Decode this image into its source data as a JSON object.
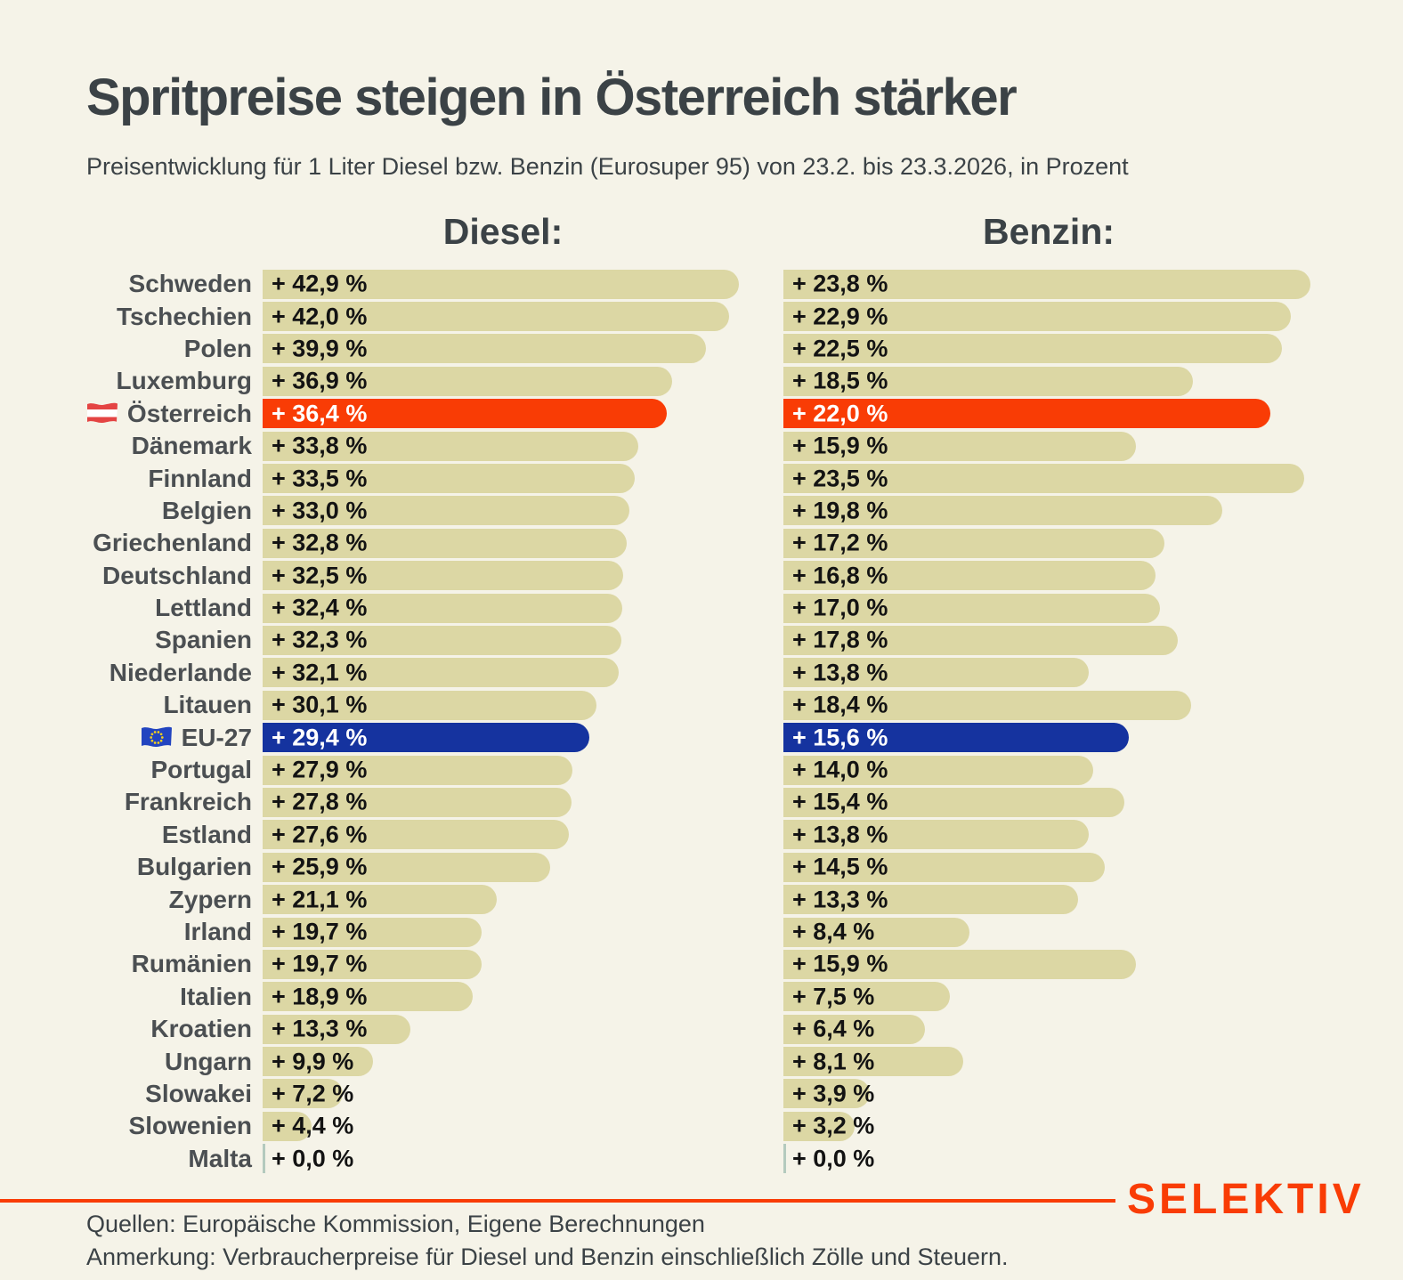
{
  "header": {
    "title": "Spritpreise steigen in Österreich stärker",
    "subtitle": "Preisentwicklung für 1 Liter Diesel bzw. Benzin (Eurosuper 95) von 23.2. bis 23.3.2026, in Prozent"
  },
  "columns": {
    "diesel_header": "Diesel:",
    "benzin_header": "Benzin:"
  },
  "chart_data": {
    "type": "bar",
    "orientation": "horizontal",
    "unit": "%",
    "series": [
      {
        "name": "Diesel",
        "axis_max": 42.9
      },
      {
        "name": "Benzin",
        "axis_max": 23.8
      }
    ],
    "rows": [
      {
        "label": "Schweden",
        "diesel": 42.9,
        "diesel_text": "+ 42,9 %",
        "benzin": 23.8,
        "benzin_text": "+ 23,8 %",
        "flag": null,
        "highlight": null
      },
      {
        "label": "Tschechien",
        "diesel": 42.0,
        "diesel_text": "+ 42,0 %",
        "benzin": 22.9,
        "benzin_text": "+ 22,9 %",
        "flag": null,
        "highlight": null
      },
      {
        "label": "Polen",
        "diesel": 39.9,
        "diesel_text": "+ 39,9 %",
        "benzin": 22.5,
        "benzin_text": "+ 22,5 %",
        "flag": null,
        "highlight": null
      },
      {
        "label": "Luxemburg",
        "diesel": 36.9,
        "diesel_text": "+ 36,9 %",
        "benzin": 18.5,
        "benzin_text": "+ 18,5 %",
        "flag": null,
        "highlight": null
      },
      {
        "label": "Österreich",
        "diesel": 36.4,
        "diesel_text": "+ 36,4 %",
        "benzin": 22.0,
        "benzin_text": "+ 22,0 %",
        "flag": "austria",
        "highlight": "orange"
      },
      {
        "label": "Dänemark",
        "diesel": 33.8,
        "diesel_text": "+ 33,8 %",
        "benzin": 15.9,
        "benzin_text": "+ 15,9 %",
        "flag": null,
        "highlight": null
      },
      {
        "label": "Finnland",
        "diesel": 33.5,
        "diesel_text": "+ 33,5 %",
        "benzin": 23.5,
        "benzin_text": "+ 23,5 %",
        "flag": null,
        "highlight": null
      },
      {
        "label": "Belgien",
        "diesel": 33.0,
        "diesel_text": "+ 33,0 %",
        "benzin": 19.8,
        "benzin_text": "+ 19,8 %",
        "flag": null,
        "highlight": null
      },
      {
        "label": "Griechenland",
        "diesel": 32.8,
        "diesel_text": "+ 32,8 %",
        "benzin": 17.2,
        "benzin_text": "+ 17,2 %",
        "flag": null,
        "highlight": null
      },
      {
        "label": "Deutschland",
        "diesel": 32.5,
        "diesel_text": "+ 32,5 %",
        "benzin": 16.8,
        "benzin_text": "+ 16,8 %",
        "flag": null,
        "highlight": null
      },
      {
        "label": "Lettland",
        "diesel": 32.4,
        "diesel_text": "+ 32,4 %",
        "benzin": 17.0,
        "benzin_text": "+ 17,0 %",
        "flag": null,
        "highlight": null
      },
      {
        "label": "Spanien",
        "diesel": 32.3,
        "diesel_text": "+ 32,3 %",
        "benzin": 17.8,
        "benzin_text": "+ 17,8 %",
        "flag": null,
        "highlight": null
      },
      {
        "label": "Niederlande",
        "diesel": 32.1,
        "diesel_text": "+ 32,1 %",
        "benzin": 13.8,
        "benzin_text": "+ 13,8 %",
        "flag": null,
        "highlight": null
      },
      {
        "label": "Litauen",
        "diesel": 30.1,
        "diesel_text": "+ 30,1 %",
        "benzin": 18.4,
        "benzin_text": "+ 18,4 %",
        "flag": null,
        "highlight": null
      },
      {
        "label": "EU-27",
        "diesel": 29.4,
        "diesel_text": "+ 29,4 %",
        "benzin": 15.6,
        "benzin_text": "+ 15,6 %",
        "flag": "eu",
        "highlight": "blue"
      },
      {
        "label": "Portugal",
        "diesel": 27.9,
        "diesel_text": "+ 27,9 %",
        "benzin": 14.0,
        "benzin_text": "+ 14,0 %",
        "flag": null,
        "highlight": null
      },
      {
        "label": "Frankreich",
        "diesel": 27.8,
        "diesel_text": "+ 27,8 %",
        "benzin": 15.4,
        "benzin_text": "+ 15,4 %",
        "flag": null,
        "highlight": null
      },
      {
        "label": "Estland",
        "diesel": 27.6,
        "diesel_text": "+ 27,6 %",
        "benzin": 13.8,
        "benzin_text": "+ 13,8 %",
        "flag": null,
        "highlight": null
      },
      {
        "label": "Bulgarien",
        "diesel": 25.9,
        "diesel_text": "+ 25,9 %",
        "benzin": 14.5,
        "benzin_text": "+ 14,5 %",
        "flag": null,
        "highlight": null
      },
      {
        "label": "Zypern",
        "diesel": 21.1,
        "diesel_text": "+ 21,1 %",
        "benzin": 13.3,
        "benzin_text": "+ 13,3 %",
        "flag": null,
        "highlight": null
      },
      {
        "label": "Irland",
        "diesel": 19.7,
        "diesel_text": "+ 19,7 %",
        "benzin": 8.4,
        "benzin_text": "+ 8,4 %",
        "flag": null,
        "highlight": null
      },
      {
        "label": "Rumänien",
        "diesel": 19.7,
        "diesel_text": "+ 19,7 %",
        "benzin": 15.9,
        "benzin_text": "+ 15,9 %",
        "flag": null,
        "highlight": null
      },
      {
        "label": "Italien",
        "diesel": 18.9,
        "diesel_text": "+ 18,9 %",
        "benzin": 7.5,
        "benzin_text": "+ 7,5 %",
        "flag": null,
        "highlight": null
      },
      {
        "label": "Kroatien",
        "diesel": 13.3,
        "diesel_text": "+ 13,3 %",
        "benzin": 6.4,
        "benzin_text": "+ 6,4 %",
        "flag": null,
        "highlight": null
      },
      {
        "label": "Ungarn",
        "diesel": 9.9,
        "diesel_text": "+ 9,9 %",
        "benzin": 8.1,
        "benzin_text": "+ 8,1 %",
        "flag": null,
        "highlight": null
      },
      {
        "label": "Slowakei",
        "diesel": 7.2,
        "diesel_text": "+ 7,2 %",
        "benzin": 3.9,
        "benzin_text": "+ 3,9 %",
        "flag": null,
        "highlight": null
      },
      {
        "label": "Slowenien",
        "diesel": 4.4,
        "diesel_text": "+ 4,4 %",
        "benzin": 3.2,
        "benzin_text": "+ 3,2 %",
        "flag": null,
        "highlight": null
      },
      {
        "label": "Malta",
        "diesel": 0.0,
        "diesel_text": "+ 0,0 %",
        "benzin": 0.0,
        "benzin_text": "+ 0,0 %",
        "flag": null,
        "highlight": null
      }
    ]
  },
  "footer": {
    "sources": "Quellen: Europäische Kommission, Eigene Berechnungen",
    "note": "Anmerkung: Verbraucherpreise für Diesel und Benzin einschließlich Zölle und Steuern.",
    "brand": "SELEKTIV"
  },
  "colors": {
    "background": "#f5f3e8",
    "bar_default": "#dcd7a4",
    "bar_orange": "#f93c05",
    "bar_blue": "#15339f",
    "accent": "#f93c05",
    "text_dark": "#3b4246",
    "label_gray": "#4b4f52",
    "zero_tick": "#b4cabe"
  }
}
